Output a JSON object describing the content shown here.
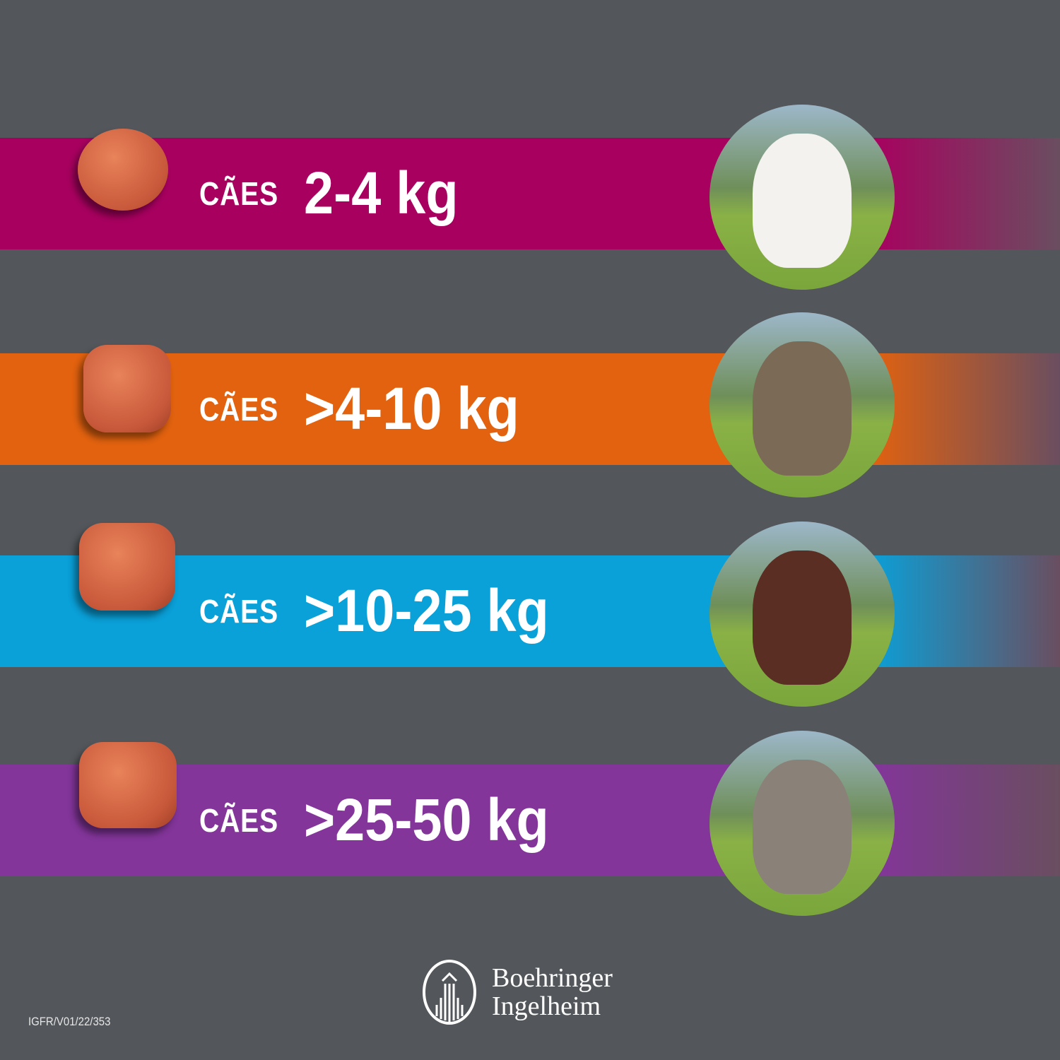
{
  "rows": [
    {
      "label": "CÃES",
      "value": "2-4 kg",
      "color": "#a8005f",
      "dog": "white small dog"
    },
    {
      "label": "CÃES",
      "value": ">4-10 kg",
      "color": "#e2620f",
      "dog": "terrier"
    },
    {
      "label": "CÃES",
      "value": ">10-25 kg",
      "color": "#0aa0d8",
      "dog": "springer spaniel"
    },
    {
      "label": "CÃES",
      "value": ">25-50 kg",
      "color": "#83359a",
      "dog": "weimaraner"
    }
  ],
  "background": "#53575b",
  "logo": {
    "line1": "Boehringer",
    "line2": "Ingelheim"
  },
  "code": "IGFR/V01/22/353"
}
